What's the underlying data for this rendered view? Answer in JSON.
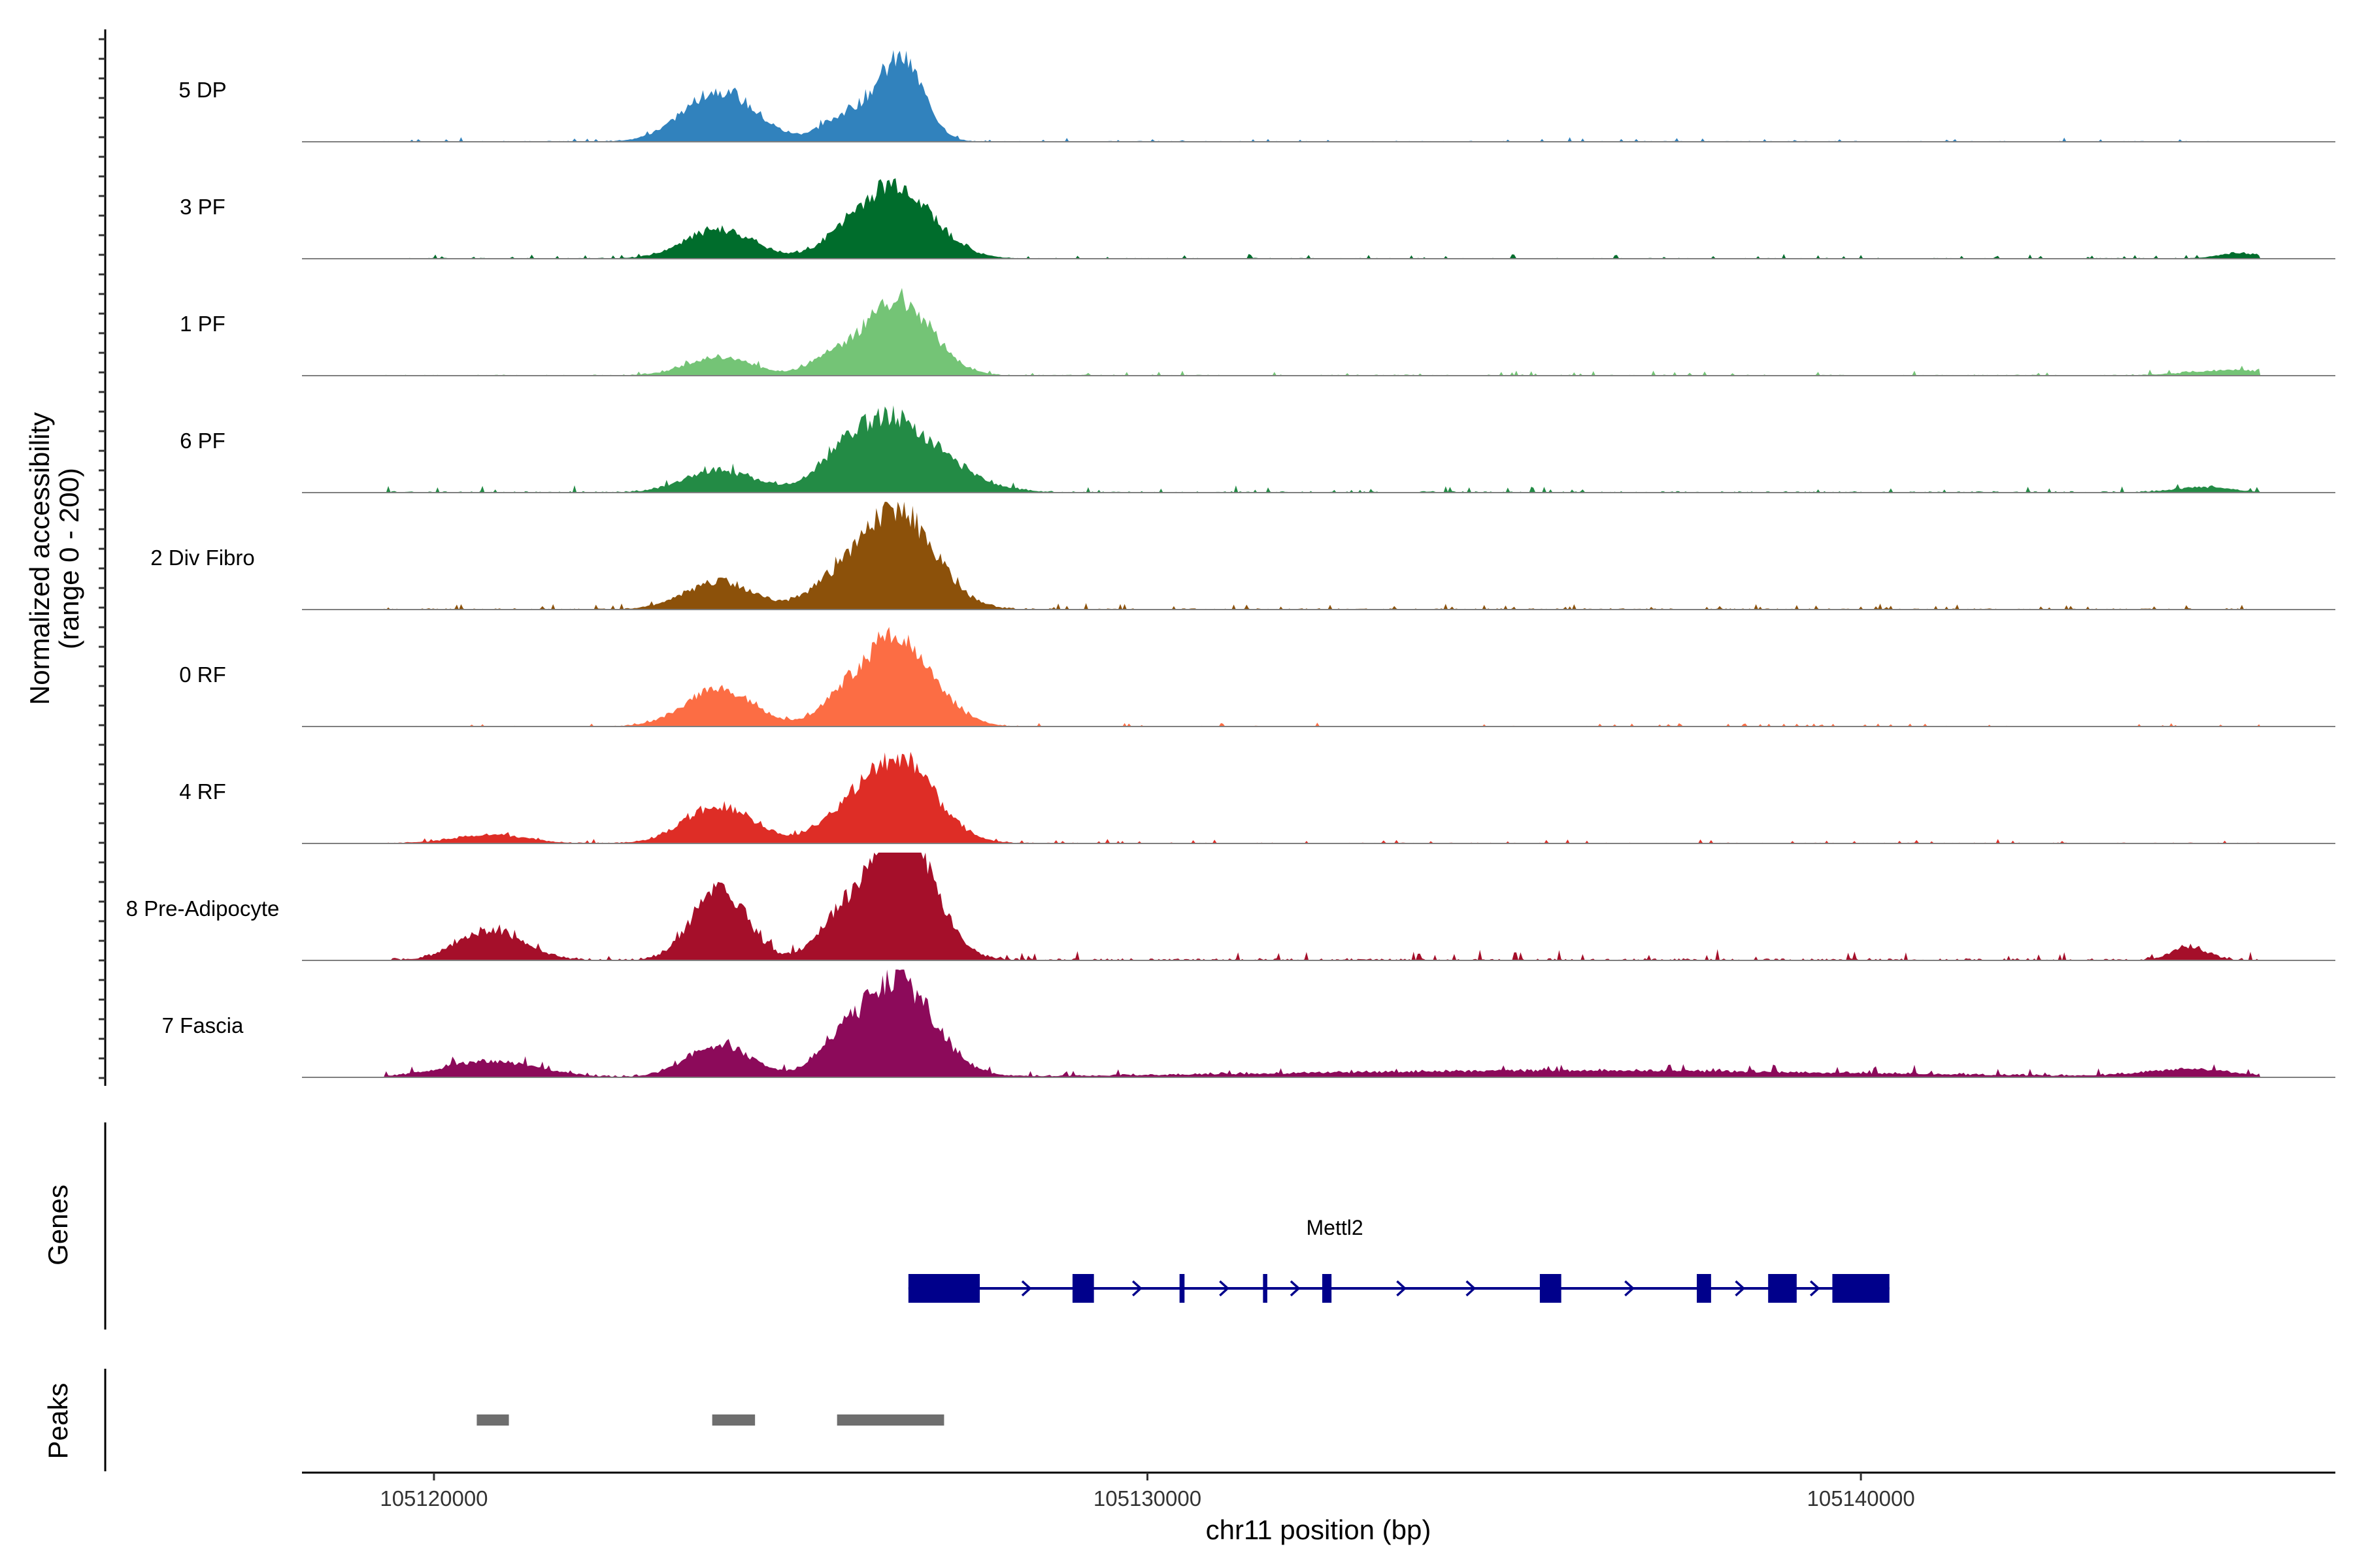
{
  "chart_data": {
    "type": "area",
    "title": "",
    "chromosome": "chr11",
    "xlabel": "chr11 position (bp)",
    "ylabel": [
      "Normalized accessibility",
      "(range 0 - 200)"
    ],
    "ylim": [
      0,
      200
    ],
    "xlim": [
      105118150,
      105146650
    ],
    "x_ticks": [
      {
        "value": 105120000,
        "label": "105120000"
      },
      {
        "value": 105130000,
        "label": "105130000"
      },
      {
        "value": 105140000,
        "label": "105140000"
      }
    ],
    "data_extent": [
      105119300,
      105145600
    ],
    "tracks": [
      {
        "name": "5 DP",
        "color": "#3182bd",
        "peaks": [
          [
            105124000,
            95,
            500
          ],
          [
            105125700,
            35,
            320
          ],
          [
            105126300,
            55,
            380
          ],
          [
            105126600,
            110,
            300
          ]
        ],
        "noise": 5,
        "extras": []
      },
      {
        "name": "3 PF",
        "color": "#006d2c",
        "peaks": [
          [
            105124000,
            55,
            480
          ],
          [
            105125700,
            30,
            320
          ],
          [
            105126300,
            50,
            400
          ],
          [
            105126600,
            95,
            500
          ]
        ],
        "noise": 5,
        "extras": [
          [
            105145300,
            10,
            300
          ]
        ]
      },
      {
        "name": "1 PF",
        "color": "#74c476",
        "peaks": [
          [
            105124000,
            35,
            450
          ],
          [
            105125600,
            35,
            320
          ],
          [
            105126300,
            40,
            380
          ],
          [
            105126600,
            110,
            450
          ]
        ],
        "noise": 6,
        "extras": [
          [
            105145200,
            10,
            600
          ]
        ]
      },
      {
        "name": "6 PF",
        "color": "#238b45",
        "peaks": [
          [
            105124000,
            40,
            480
          ],
          [
            105125700,
            30,
            380
          ],
          [
            105126300,
            55,
            500
          ],
          [
            105126600,
            85,
            700
          ]
        ],
        "noise": 8,
        "extras": [
          [
            105144800,
            10,
            400
          ]
        ]
      },
      {
        "name": "2 Div Fibro",
        "color": "#8c510a",
        "peaks": [
          [
            105124000,
            50,
            480
          ],
          [
            105125600,
            40,
            380
          ],
          [
            105126300,
            60,
            450
          ],
          [
            105126600,
            130,
            500
          ]
        ],
        "noise": 7,
        "extras": []
      },
      {
        "name": "0 RF",
        "color": "#fc6d44",
        "peaks": [
          [
            105124000,
            70,
            480
          ],
          [
            105125700,
            40,
            320
          ],
          [
            105126300,
            55,
            400
          ],
          [
            105126600,
            120,
            480
          ]
        ],
        "noise": 4,
        "extras": []
      },
      {
        "name": "4 RF",
        "color": "#de2d26",
        "peaks": [
          [
            105124000,
            70,
            480
          ],
          [
            105125600,
            30,
            350
          ],
          [
            105126300,
            55,
            450
          ],
          [
            105126600,
            110,
            500
          ],
          [
            105120800,
            16,
            500
          ]
        ],
        "noise": 5,
        "extras": []
      },
      {
        "name": "8 Pre-Adipocyte",
        "color": "#a50f2a",
        "peaks": [
          [
            105124000,
            130,
            380
          ],
          [
            105125600,
            50,
            300
          ],
          [
            105126300,
            90,
            420
          ],
          [
            105126600,
            185,
            450
          ],
          [
            105120800,
            55,
            450
          ]
        ],
        "noise": 12,
        "extras": [
          [
            105144600,
            25,
            250
          ]
        ]
      },
      {
        "name": "7 Fascia",
        "color": "#8c0a5a",
        "peaks": [
          [
            105124000,
            60,
            450
          ],
          [
            105125600,
            40,
            320
          ],
          [
            105126300,
            70,
            450
          ],
          [
            105126600,
            120,
            500
          ],
          [
            105120800,
            30,
            650
          ]
        ],
        "noise": 9,
        "extras": [
          [
            105136000,
            12,
            4000
          ],
          [
            105144600,
            14,
            600
          ]
        ]
      }
    ],
    "genes": [
      {
        "name": "Mettl2",
        "strand": "+",
        "start": 105126650,
        "end": 105140400,
        "exons": [
          [
            105126650,
            105127650
          ],
          [
            105128950,
            105129250
          ],
          [
            105130450,
            105130520
          ],
          [
            105131620,
            105131680
          ],
          [
            105132450,
            105132580
          ],
          [
            105135500,
            105135800
          ],
          [
            105137700,
            105137900
          ],
          [
            105138700,
            105139100
          ],
          [
            105139600,
            105140400
          ]
        ]
      }
    ],
    "peaks": [
      [
        105120600,
        105121050
      ],
      [
        105123900,
        105124500
      ],
      [
        105125650,
        105127150
      ]
    ]
  },
  "panels": {
    "genes_label": "Genes",
    "peaks_label": "Peaks"
  },
  "colors": {
    "gene": "#00008b",
    "peak": "#6e6e6e",
    "baseline": "#7f7f7f"
  }
}
